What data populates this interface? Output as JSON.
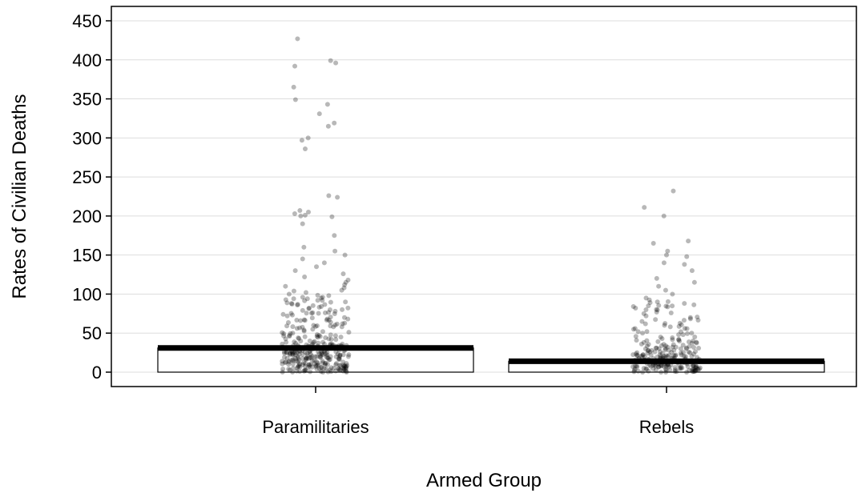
{
  "chart_data": {
    "type": "bar",
    "xlabel": "Armed Group",
    "ylabel": "Rates of Civilian Deaths",
    "ylim": [
      0,
      460
    ],
    "yticks": [
      0,
      50,
      100,
      150,
      200,
      250,
      300,
      350,
      400,
      450
    ],
    "grid": true,
    "categories": [
      "Paramilitaries",
      "Rebels"
    ],
    "values": [
      31,
      14
    ],
    "overlay": "jittered-points",
    "points": {
      "Paramilitaries": [
        427,
        399,
        396,
        392,
        365,
        349,
        343,
        331,
        319,
        315,
        300,
        297,
        286,
        226,
        224,
        207,
        205,
        203,
        201,
        200,
        199,
        190,
        175,
        160,
        155,
        150,
        145,
        140,
        135,
        130,
        126,
        122,
        118,
        115,
        112,
        110,
        108,
        105,
        102,
        100,
        98,
        96,
        94,
        92,
        90,
        88,
        86,
        84,
        82,
        80,
        78,
        76,
        74,
        72,
        70,
        68,
        66,
        64,
        62,
        60,
        58,
        56,
        55,
        54,
        52,
        50,
        48,
        46,
        45,
        44,
        42,
        40,
        38,
        37,
        36,
        35,
        34,
        33,
        32,
        31,
        30,
        29,
        28,
        27,
        26,
        25,
        24,
        23,
        22,
        21,
        20,
        19,
        18,
        17,
        16,
        15,
        14,
        13,
        12,
        11,
        10,
        9,
        8,
        7,
        6,
        5,
        4,
        3,
        2,
        1,
        0
      ],
      "Rebels": [
        232,
        211,
        200,
        168,
        165,
        155,
        150,
        148,
        140,
        138,
        130,
        120,
        115,
        110,
        105,
        100,
        95,
        90,
        88,
        85,
        82,
        80,
        75,
        72,
        70,
        65,
        60,
        58,
        55,
        52,
        50,
        48,
        45,
        42,
        40,
        38,
        36,
        34,
        32,
        30,
        28,
        26,
        25,
        24,
        22,
        20,
        19,
        18,
        17,
        16,
        15,
        14,
        13,
        12,
        11,
        10,
        9,
        8,
        7,
        6,
        5,
        4,
        3,
        2,
        1,
        0
      ]
    }
  }
}
